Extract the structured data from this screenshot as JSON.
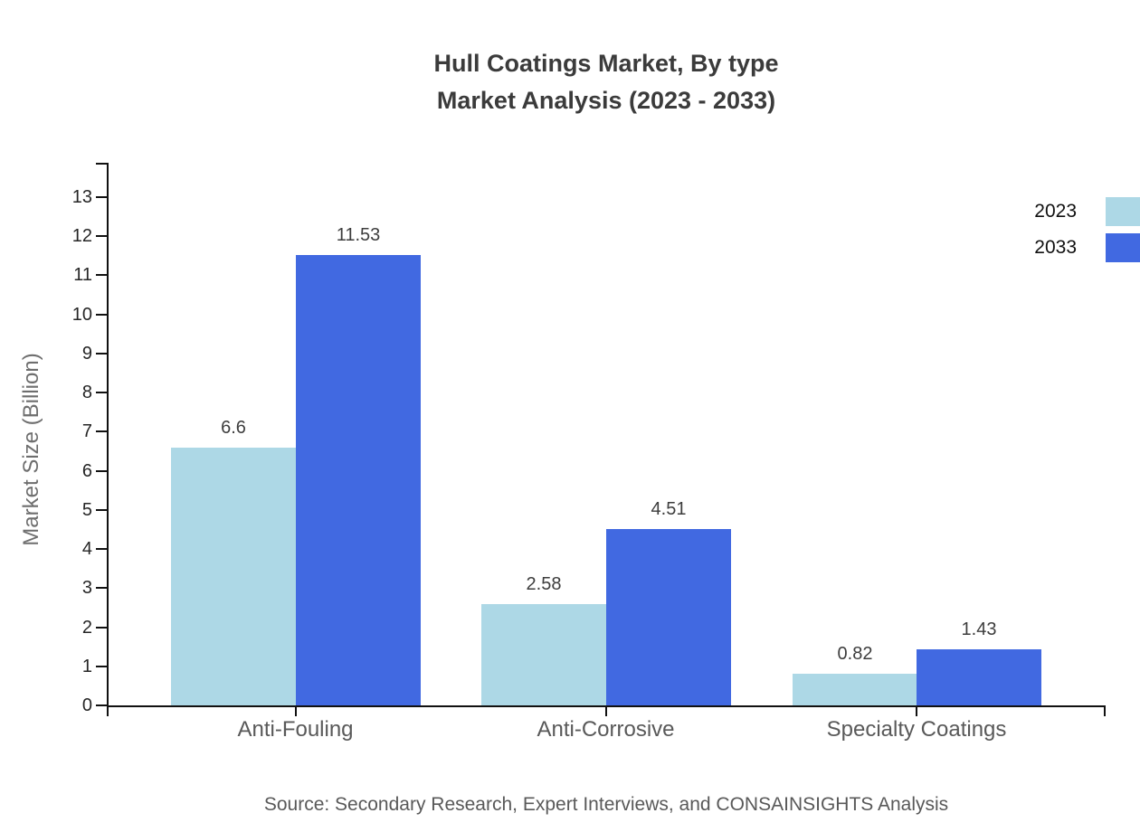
{
  "chart_data": {
    "type": "bar",
    "title": "Hull Coatings Market, By type Market Analysis (2023 - 2033)",
    "title_lines": [
      "Hull Coatings Market, By type",
      "Market Analysis (2023 - 2033)"
    ],
    "categories": [
      "Anti-Fouling",
      "Anti-Corrosive",
      "Specialty Coatings"
    ],
    "series": [
      {
        "name": "2023",
        "color": "#add8e6",
        "values": [
          6.6,
          2.58,
          0.82
        ]
      },
      {
        "name": "2033",
        "color": "#4169e1",
        "values": [
          11.53,
          4.51,
          1.43
        ]
      }
    ],
    "bar_value_labels": [
      "6.6",
      "11.53",
      "2.58",
      "4.51",
      "0.82",
      "1.43"
    ],
    "xlabel": "",
    "ylabel": "Market Size (Billion)",
    "ylim": [
      0,
      13
    ],
    "ytick_step": 1,
    "yticks": [
      0,
      1,
      2,
      3,
      4,
      5,
      6,
      7,
      8,
      9,
      10,
      11,
      12,
      13
    ],
    "grid": false,
    "legend_position": "top-right",
    "source": "Source: Secondary Research, Expert Interviews, and CONSAINSIGHTS Analysis"
  }
}
